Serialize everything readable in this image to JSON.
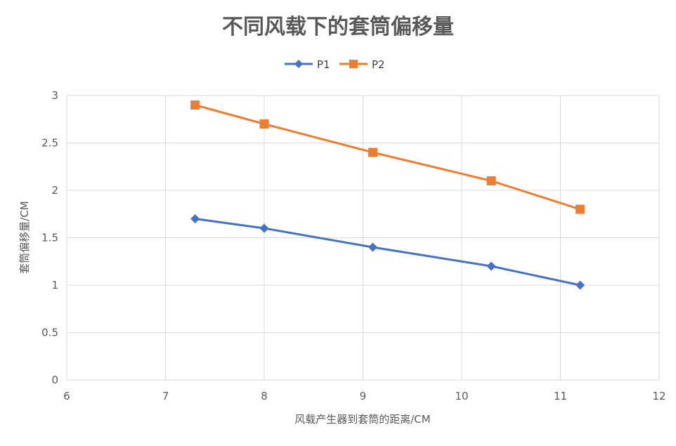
{
  "chart_data": {
    "type": "scatter",
    "title": "不同风载下的套筒偏移量",
    "xlabel": "风载产生器到套筒的距离/CM",
    "ylabel": "套筒偏移量/CM",
    "xlim": [
      6,
      12
    ],
    "ylim": [
      0,
      3
    ],
    "x_ticks": [
      "6",
      "7",
      "8",
      "9",
      "10",
      "11",
      "12"
    ],
    "y_ticks": [
      "0",
      "0.5",
      "1",
      "1.5",
      "2",
      "2.5",
      "3"
    ],
    "grid": true,
    "legend_position": "top",
    "x": [
      7.3,
      8,
      9.1,
      10.3,
      11.2
    ],
    "series": [
      {
        "name": "P1",
        "color": "#4472c4",
        "marker": "diamond",
        "values": [
          1.7,
          1.6,
          1.4,
          1.2,
          1.0
        ]
      },
      {
        "name": "P2",
        "color": "#ed7d31",
        "marker": "square",
        "values": [
          2.9,
          2.7,
          2.4,
          2.1,
          1.8
        ]
      }
    ]
  }
}
